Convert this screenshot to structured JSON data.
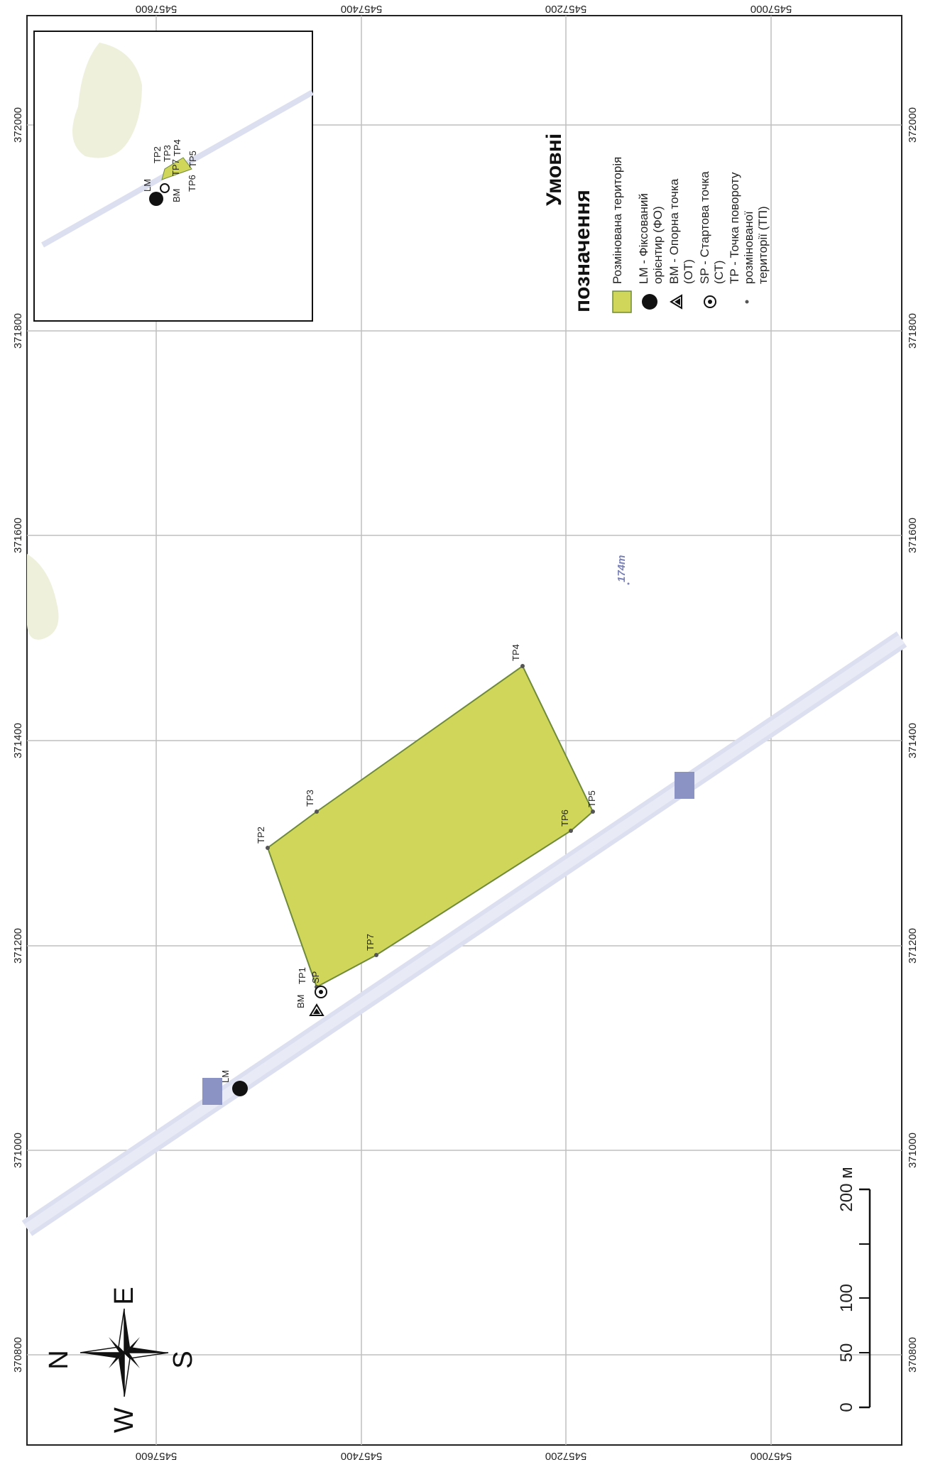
{
  "legend": {
    "title_line1": "Умовні",
    "title_line2": "позначення",
    "items": [
      {
        "icon": "green-square-icon",
        "lines": [
          "Розмінована територія"
        ]
      },
      {
        "icon": "black-circle-icon",
        "lines": [
          "LM - Фіксований",
          "орієнтир (ФО)"
        ]
      },
      {
        "icon": "triangle-icon",
        "lines": [
          "BM - Опорна точка",
          "(ОТ)"
        ]
      },
      {
        "icon": "target-circle-icon",
        "lines": [
          "SP - Стартова точка",
          "(СТ)"
        ]
      },
      {
        "icon": "small-dot-icon",
        "lines": [
          "TP - Точка повороту",
          "розмінованої",
          "території (ТП)"
        ]
      }
    ]
  },
  "grid": {
    "easting_labels": [
      "370800",
      "371000",
      "371200",
      "371400",
      "371600",
      "371800",
      "372000"
    ],
    "northing_labels": [
      "5457600",
      "5457400",
      "5457200",
      "5457000"
    ]
  },
  "points": {
    "LM": "LM",
    "BM": "BM",
    "SP": "SP",
    "TP1": "TP1",
    "TP2": "TP2",
    "TP3": "TP3",
    "TP4": "TP4",
    "TP5": "TP5",
    "TP6": "TP6",
    "TP7": "TP7"
  },
  "inset_labels": {
    "LM": "LM",
    "BM": "BM",
    "TP2": "TP2",
    "TP3": "TP3",
    "TP4": "TP4",
    "TP5": "TP5",
    "TP6": "TP6",
    "TP7": "TP7"
  },
  "elevation": "174m",
  "scale_bar": {
    "labels": [
      "0",
      "50",
      "100",
      "200 м"
    ]
  },
  "compass": {
    "n": "N",
    "e": "E",
    "s": "S",
    "w": "W"
  },
  "colors": {
    "demined_fill": "#cfd659",
    "demined_stroke": "#6f8a3a",
    "road": "#dcdff0",
    "building": "#8b93c4",
    "grid": "#bfbfbf"
  }
}
